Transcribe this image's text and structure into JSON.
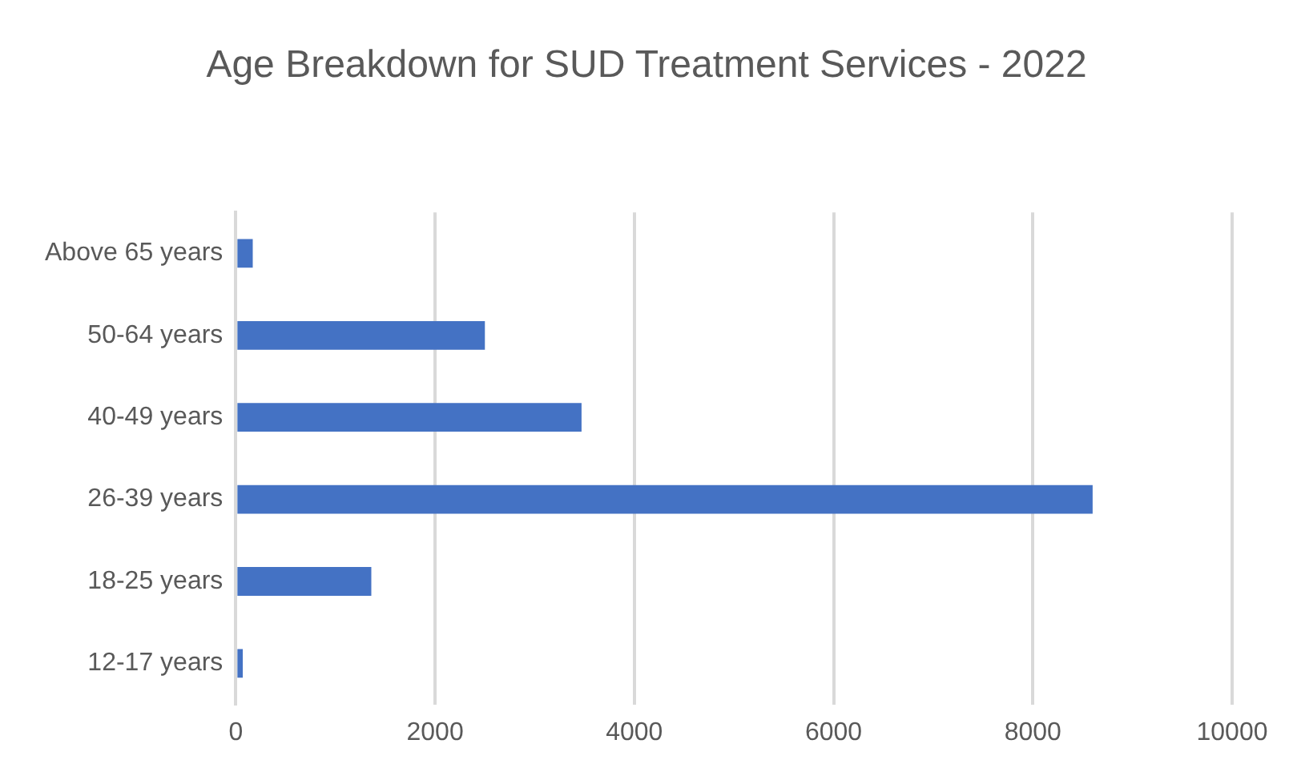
{
  "chart_data": {
    "type": "bar",
    "orientation": "horizontal",
    "title": "Age Breakdown for SUD Treatment Services - 2022",
    "categories": [
      "Above 65 years",
      "50-64 years",
      "40-49 years",
      "26-39 years",
      "18-25 years",
      "12-17 years"
    ],
    "values": [
      170,
      2500,
      3470,
      8600,
      1360,
      70
    ],
    "color": "#4472c4",
    "xlim": [
      0,
      10000
    ],
    "xticks": [
      0,
      2000,
      4000,
      6000,
      8000,
      10000
    ],
    "grid": "x"
  }
}
